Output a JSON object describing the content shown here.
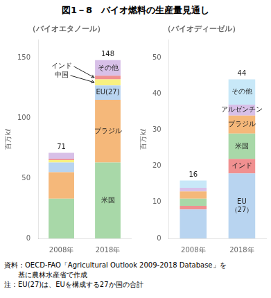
{
  "title": "図1－8　バイオ燃料の生産量見通し",
  "annotations": [
    "資料：OECD-FAO「Agricultural Outlook 2009-2018 Database」を",
    "　　基に農林水産省で作成",
    "注：EU(27)は、EUを構成する27か国の合計"
  ],
  "chart_data": [
    {
      "type": "bar",
      "stacked": true,
      "grid": false,
      "subtitle": "（バイオエタノール）",
      "ylabel": "百万kℓ",
      "categories": [
        "2008年",
        "2018年"
      ],
      "series": [
        {
          "name": "米国",
          "color": "#a8d8a8",
          "values": [
            33,
            63
          ]
        },
        {
          "name": "ブラジル",
          "color": "#f5b87a",
          "values": [
            22,
            52
          ]
        },
        {
          "name": "EU(27)",
          "color": "#b8d4f0",
          "values": [
            8,
            12
          ]
        },
        {
          "name": "中国",
          "color": "#f8f080",
          "values": [
            2,
            5
          ]
        },
        {
          "name": "インド",
          "color": "#f09090",
          "values": [
            1,
            3
          ]
        },
        {
          "name": "その他",
          "color": "#d8c0e8",
          "values": [
            5,
            13
          ]
        }
      ],
      "totals": [
        71,
        148
      ],
      "ylim": [
        0,
        165
      ],
      "yticks": [
        0,
        50,
        100,
        150
      ]
    },
    {
      "type": "bar",
      "stacked": true,
      "grid": false,
      "subtitle": "（バイオディーゼル）",
      "ylabel": "百万kℓ",
      "categories": [
        "2008年",
        "2018年"
      ],
      "series": [
        {
          "name": "EU\n（27）",
          "color": "#b8d4f0",
          "values": [
            8,
            18
          ]
        },
        {
          "name": "インド",
          "color": "#f09090",
          "values": [
            1,
            4
          ]
        },
        {
          "name": "米国",
          "color": "#a8d8a8",
          "values": [
            2,
            7
          ]
        },
        {
          "name": "ブラジル",
          "color": "#f5b87a",
          "values": [
            2,
            5
          ]
        },
        {
          "name": "アルゼンチン",
          "color": "#d8c0e8",
          "values": [
            1,
            3
          ]
        },
        {
          "name": "その他",
          "color": "#c8e8f8",
          "values": [
            2,
            7
          ]
        }
      ],
      "totals": [
        16,
        44
      ],
      "ylim": [
        0,
        55
      ],
      "yticks": [
        0,
        10,
        20,
        30,
        40,
        50
      ]
    }
  ]
}
